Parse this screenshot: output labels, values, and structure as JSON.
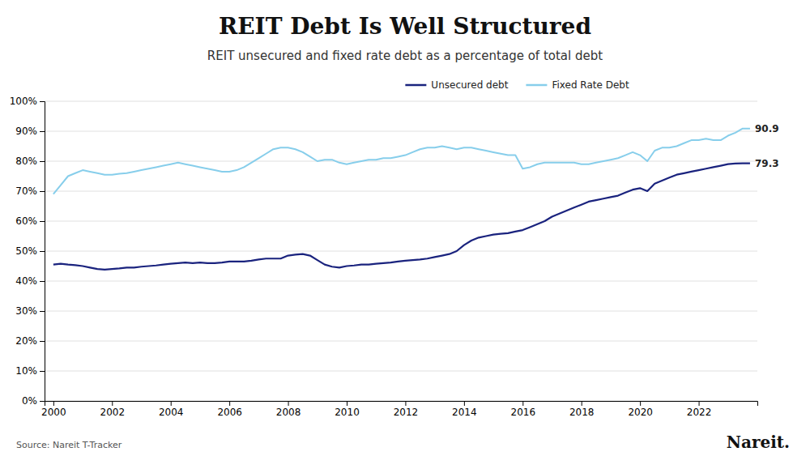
{
  "chart_data": {
    "type": "line",
    "title": "REIT Debt Is Well Structured",
    "subtitle": "REIT unsecured and fixed rate debt as a percentage of total debt",
    "source": "Source: Nareit T-Tracker",
    "credit": "Nareit.",
    "x": [
      2000.0,
      2000.25,
      2000.5,
      2000.75,
      2001.0,
      2001.25,
      2001.5,
      2001.75,
      2002.0,
      2002.25,
      2002.5,
      2002.75,
      2003.0,
      2003.25,
      2003.5,
      2003.75,
      2004.0,
      2004.25,
      2004.5,
      2004.75,
      2005.0,
      2005.25,
      2005.5,
      2005.75,
      2006.0,
      2006.25,
      2006.5,
      2006.75,
      2007.0,
      2007.25,
      2007.5,
      2007.75,
      2008.0,
      2008.25,
      2008.5,
      2008.75,
      2009.0,
      2009.25,
      2009.5,
      2009.75,
      2010.0,
      2010.25,
      2010.5,
      2010.75,
      2011.0,
      2011.25,
      2011.5,
      2011.75,
      2012.0,
      2012.25,
      2012.5,
      2012.75,
      2013.0,
      2013.25,
      2013.5,
      2013.75,
      2014.0,
      2014.25,
      2014.5,
      2014.75,
      2015.0,
      2015.25,
      2015.5,
      2015.75,
      2016.0,
      2016.25,
      2016.5,
      2016.75,
      2017.0,
      2017.25,
      2017.5,
      2017.75,
      2018.0,
      2018.25,
      2018.5,
      2018.75,
      2019.0,
      2019.25,
      2019.5,
      2019.75,
      2020.0,
      2020.25,
      2020.5,
      2020.75,
      2021.0,
      2021.25,
      2021.5,
      2021.75,
      2022.0,
      2022.25,
      2022.5,
      2022.75,
      2023.0,
      2023.25,
      2023.5,
      2023.75
    ],
    "series": [
      {
        "name": "Unsecured debt",
        "color": "#1a237e",
        "values": [
          45.5,
          45.8,
          45.5,
          45.3,
          45.0,
          44.5,
          44.0,
          43.8,
          44.0,
          44.2,
          44.5,
          44.5,
          44.8,
          45.0,
          45.2,
          45.5,
          45.8,
          46.0,
          46.2,
          46.0,
          46.2,
          46.0,
          46.0,
          46.2,
          46.5,
          46.5,
          46.5,
          46.8,
          47.2,
          47.5,
          47.5,
          47.5,
          48.5,
          48.8,
          49.0,
          48.5,
          47.0,
          45.5,
          44.8,
          44.5,
          45.0,
          45.2,
          45.5,
          45.5,
          45.8,
          46.0,
          46.2,
          46.5,
          46.8,
          47.0,
          47.2,
          47.5,
          48.0,
          48.5,
          49.0,
          50.0,
          52.0,
          53.5,
          54.5,
          55.0,
          55.5,
          55.8,
          56.0,
          56.5,
          57.0,
          58.0,
          59.0,
          60.0,
          61.5,
          62.5,
          63.5,
          64.5,
          65.5,
          66.5,
          67.0,
          67.5,
          68.0,
          68.5,
          69.5,
          70.5,
          71.0,
          70.0,
          72.5,
          73.5,
          74.5,
          75.5,
          76.0,
          76.5,
          77.0,
          77.5,
          78.0,
          78.5,
          79.0,
          79.2,
          79.3,
          79.3
        ]
      },
      {
        "name": "Fixed Rate Debt",
        "color": "#87ceeb",
        "values": [
          69.0,
          72.0,
          75.0,
          76.0,
          77.0,
          76.5,
          76.0,
          75.5,
          75.5,
          75.8,
          76.0,
          76.5,
          77.0,
          77.5,
          78.0,
          78.5,
          79.0,
          79.5,
          79.0,
          78.5,
          78.0,
          77.5,
          77.0,
          76.5,
          76.5,
          77.0,
          78.0,
          79.5,
          81.0,
          82.5,
          84.0,
          84.5,
          84.5,
          84.0,
          83.0,
          81.5,
          80.0,
          80.5,
          80.5,
          79.5,
          79.0,
          79.5,
          80.0,
          80.5,
          80.5,
          81.0,
          81.0,
          81.5,
          82.0,
          83.0,
          84.0,
          84.5,
          84.5,
          85.0,
          84.5,
          84.0,
          84.5,
          84.5,
          84.0,
          83.5,
          83.0,
          82.5,
          82.0,
          82.0,
          77.5,
          78.0,
          79.0,
          79.5,
          79.5,
          79.5,
          79.5,
          79.5,
          79.0,
          79.0,
          79.5,
          80.0,
          80.5,
          81.0,
          82.0,
          83.0,
          82.0,
          80.0,
          83.5,
          84.5,
          84.5,
          85.0,
          86.0,
          87.0,
          87.0,
          87.5,
          87.0,
          87.0,
          88.5,
          89.5,
          90.9,
          90.9
        ]
      }
    ],
    "annotations": [
      {
        "text": "90.9",
        "x": 2023.75,
        "y": 90.9
      },
      {
        "text": "79.3",
        "x": 2023.75,
        "y": 79.3
      }
    ],
    "xlim": [
      1999.7,
      2024.0
    ],
    "xticks": [
      2000,
      2002,
      2004,
      2006,
      2008,
      2010,
      2012,
      2014,
      2016,
      2018,
      2020,
      2022
    ],
    "ylim": [
      0,
      100
    ],
    "yticks": [
      {
        "value": 0,
        "label": "0%"
      },
      {
        "value": 10,
        "label": "10%"
      },
      {
        "value": 20,
        "label": "20%"
      },
      {
        "value": 30,
        "label": "30%"
      },
      {
        "value": 40,
        "label": "40%"
      },
      {
        "value": 50,
        "label": "50%"
      },
      {
        "value": 60,
        "label": "60%"
      },
      {
        "value": 70,
        "label": "70%"
      },
      {
        "value": 80,
        "label": "80%"
      },
      {
        "value": 90,
        "label": "90%"
      },
      {
        "value": 100,
        "label": "100%"
      }
    ],
    "grid": true,
    "legend": "top"
  }
}
